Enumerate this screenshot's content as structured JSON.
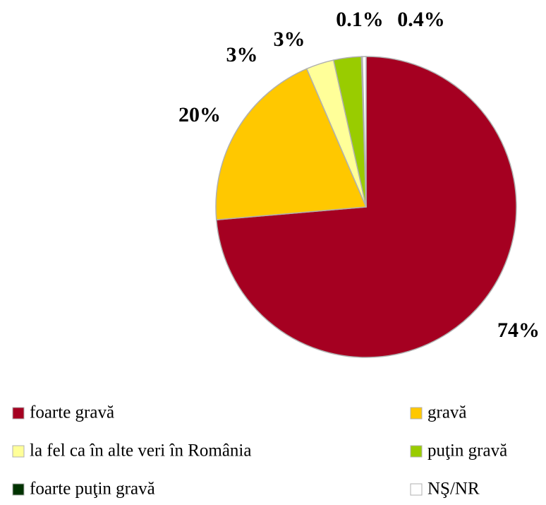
{
  "chart_data": {
    "type": "pie",
    "categories": [
      "foarte gravă",
      "gravă",
      "la fel ca în alte veri în România",
      "puţin gravă",
      "foarte puţin gravă",
      "NŞ/NR"
    ],
    "values": [
      74,
      20,
      3,
      3,
      0.1,
      0.4
    ],
    "value_labels": [
      "74%",
      "20%",
      "3%",
      "3%",
      "0.1%",
      "0.4%"
    ],
    "colors": [
      "#a50021",
      "#ffc800",
      "#ffff99",
      "#99cc00",
      "#003300",
      "#ffffff"
    ],
    "legend": "bottom"
  }
}
